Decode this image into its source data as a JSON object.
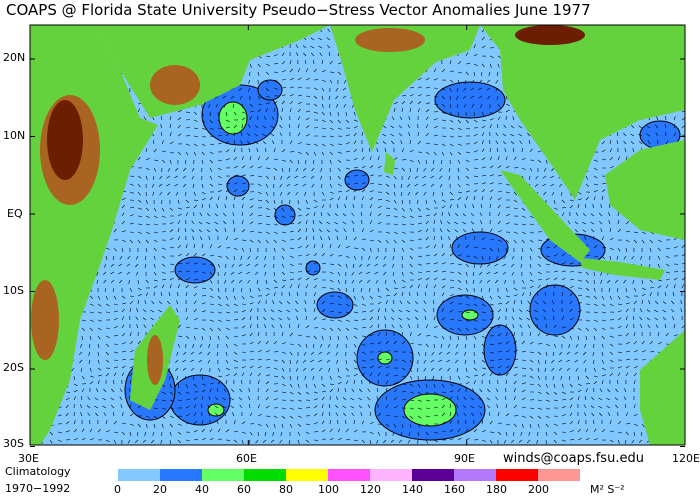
{
  "title": "COAPS @ Florida State University Pseudo−Stress Vector Anomalies  June 1977",
  "lat_labels": [
    "20N",
    "10N",
    "EQ",
    "10S",
    "20S",
    "30S"
  ],
  "lon_labels": [
    "30E",
    "60E",
    "90E",
    "120E"
  ],
  "credit": "winds@coaps.fsu.edu",
  "climatology": {
    "line1": "Climatology",
    "line2": "1970−1992"
  },
  "legend": {
    "colors": [
      "#80c8ff",
      "#2878ff",
      "#64ff64",
      "#00dc00",
      "#ffff00",
      "#ff50ff",
      "#ffb4ff",
      "#5a0096",
      "#b478ff",
      "#ff0000",
      "#ff9696"
    ],
    "labels": [
      "0",
      "20",
      "40",
      "60",
      "80",
      "100",
      "120",
      "140",
      "160",
      "180",
      "200"
    ],
    "units": "M² S⁻²"
  },
  "map": {
    "lon_range": [
      30,
      120
    ],
    "lat_range": [
      -30,
      24
    ],
    "ocean_color": "#80c8ff",
    "land_low": "#64d23c",
    "land_high": "#6e1e00",
    "coast_color": "#c0c0c0"
  }
}
